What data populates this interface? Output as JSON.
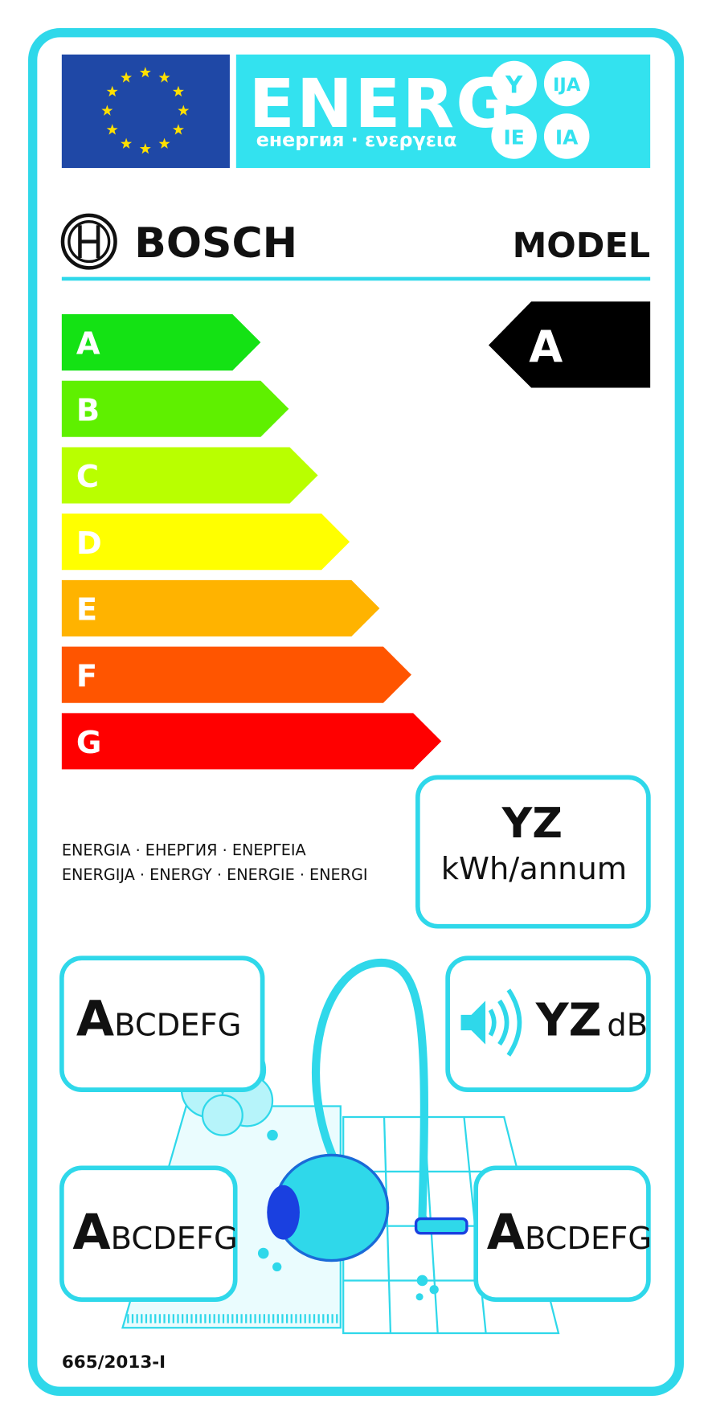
{
  "header": {
    "title": "ENERG",
    "subtitle": "енергия · ενεργεια",
    "language_suffixes": [
      "Y",
      "IJA",
      "IE",
      "IA"
    ]
  },
  "supplier": "BOSCH",
  "model": "MODEL",
  "scale": {
    "classes": [
      "A",
      "B",
      "C",
      "D",
      "E",
      "F",
      "G"
    ]
  },
  "rating": "A",
  "energy_words": [
    "ENERGIA · ЕНЕРГИЯ · ΕΝΕΡΓΕΙΑ",
    "ENERGIJA · ENERGY · ENERGIE · ENERGI"
  ],
  "annual_consumption": {
    "value": "YZ",
    "unit": "kWh/annum"
  },
  "performance_boxes": [
    {
      "lead": "A",
      "rest": "BCDEFG"
    },
    {
      "lead": "A",
      "rest": "BCDEFG"
    },
    {
      "lead": "A",
      "rest": "BCDEFG"
    }
  ],
  "noise": {
    "value": "YZ",
    "unit": "dB"
  },
  "regulation": "665/2013-I"
}
